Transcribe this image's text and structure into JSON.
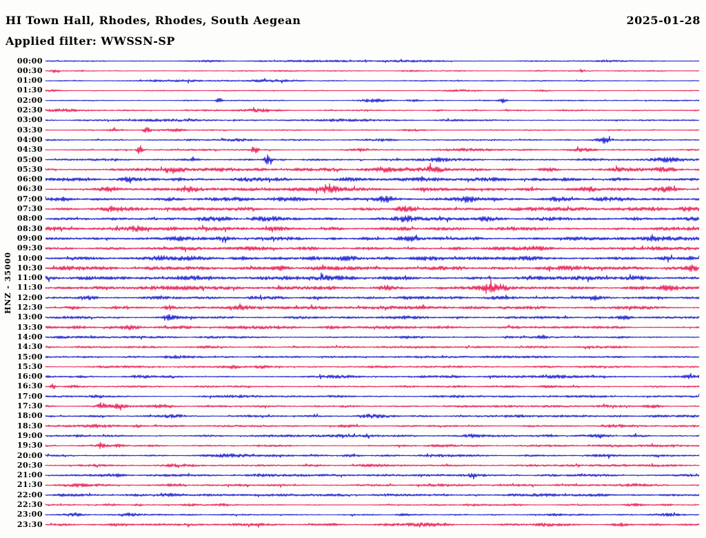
{
  "header": {
    "station_title": "HI Town Hall, Rhodes, Rhodes, South Aegean",
    "date": "2025-01-28",
    "filter_line": "Applied filter: WWSSN-SP"
  },
  "axis": {
    "channel_label": "HNZ - 35000",
    "row_interval": "30 minutes",
    "first_row": "00:00",
    "last_row": "23:30"
  },
  "colors": {
    "trace_blue": "#0d10cf",
    "trace_red": "#e8114d",
    "text": "#000000",
    "background": "#fdfdfb"
  },
  "chart_data": {
    "type": "line",
    "title": "HI Town Hall, Rhodes, Rhodes, South Aegean",
    "subtitle": "Applied filter: WWSSN-SP",
    "date": "2025-01-28",
    "channel": "HNZ",
    "amplitude_scale": 35000,
    "layout": "helicorder, 48 half-hour rows, alternating blue/red traces",
    "legend_position": "none",
    "grid": false,
    "rows": [
      {
        "time": "00:00",
        "color": "blue",
        "noise": 0.7,
        "events": [
          [
            0.42,
            1.3,
            45
          ],
          [
            0.56,
            1.3,
            25
          ],
          [
            0.25,
            0.9,
            12
          ],
          [
            0.86,
            1.0,
            20
          ]
        ]
      },
      {
        "time": "00:30",
        "color": "red",
        "noise": 0.6,
        "events": [
          [
            0.015,
            2.2,
            4
          ],
          [
            0.36,
            1.0,
            9
          ],
          [
            0.56,
            1.0,
            12
          ],
          [
            0.82,
            1.6,
            2
          ]
        ]
      },
      {
        "time": "01:00",
        "color": "blue",
        "noise": 0.7,
        "events": [
          [
            0.2,
            1.1,
            40
          ],
          [
            0.34,
            1.4,
            30
          ],
          [
            0.63,
            0.9,
            8
          ]
        ]
      },
      {
        "time": "01:30",
        "color": "red",
        "noise": 0.6,
        "events": [
          [
            0.01,
            1.4,
            8
          ],
          [
            0.63,
            1.4,
            22
          ],
          [
            0.76,
            0.9,
            8
          ]
        ]
      },
      {
        "time": "02:00",
        "color": "blue",
        "noise": 0.7,
        "events": [
          [
            0.265,
            5.5,
            2.5
          ],
          [
            0.5,
            2.2,
            14
          ],
          [
            0.565,
            2.0,
            8
          ],
          [
            0.7,
            3.5,
            4
          ]
        ]
      },
      {
        "time": "02:30",
        "color": "red",
        "noise": 0.9,
        "events": [
          [
            0.03,
            1.6,
            16
          ],
          [
            0.33,
            1.7,
            16
          ],
          [
            0.6,
            1.0,
            10
          ]
        ]
      },
      {
        "time": "03:00",
        "color": "blue",
        "noise": 0.8,
        "events": [
          [
            0.2,
            1.3,
            45
          ],
          [
            0.46,
            1.3,
            40
          ],
          [
            0.62,
            0.9,
            15
          ]
        ]
      },
      {
        "time": "03:30",
        "color": "red",
        "noise": 0.7,
        "events": [
          [
            0.105,
            2.2,
            6
          ],
          [
            0.155,
            3.2,
            5
          ],
          [
            0.2,
            2.2,
            9
          ],
          [
            0.56,
            1.3,
            12
          ]
        ]
      },
      {
        "time": "04:00",
        "color": "blue",
        "noise": 1.0,
        "events": [
          [
            0.855,
            4.0,
            6
          ],
          [
            0.5,
            1.2,
            18
          ],
          [
            0.3,
            1.0,
            18
          ]
        ]
      },
      {
        "time": "04:30",
        "color": "red",
        "noise": 1.0,
        "events": [
          [
            0.145,
            8.5,
            3
          ],
          [
            0.32,
            5.0,
            3.5
          ],
          [
            0.48,
            1.6,
            16
          ],
          [
            0.66,
            1.8,
            25
          ],
          [
            0.82,
            2.0,
            14
          ]
        ]
      },
      {
        "time": "05:00",
        "color": "blue",
        "noise": 1.3,
        "events": [
          [
            0.34,
            7.5,
            4
          ],
          [
            0.225,
            1.8,
            8
          ],
          [
            0.6,
            2.4,
            14
          ],
          [
            0.955,
            2.8,
            15
          ]
        ]
      },
      {
        "time": "05:30",
        "color": "red",
        "noise": 2.2,
        "events": [
          [
            0.2,
            2.2,
            9
          ],
          [
            0.52,
            2.8,
            12
          ],
          [
            0.59,
            2.2,
            8
          ],
          [
            0.77,
            2.2,
            9
          ],
          [
            0.95,
            1.8,
            9
          ]
        ]
      },
      {
        "time": "06:00",
        "color": "blue",
        "noise": 2.2,
        "events": [
          [
            0.12,
            2.2,
            9
          ],
          [
            0.2,
            2.2,
            7
          ],
          [
            0.46,
            1.8,
            16
          ],
          [
            0.75,
            1.4,
            16
          ]
        ]
      },
      {
        "time": "06:30",
        "color": "red",
        "noise": 2.2,
        "events": [
          [
            0.1,
            2.3,
            10
          ],
          [
            0.22,
            2.3,
            9
          ],
          [
            0.44,
            2.8,
            10
          ],
          [
            0.83,
            2.3,
            10
          ],
          [
            0.95,
            1.8,
            7
          ]
        ]
      },
      {
        "time": "07:00",
        "color": "blue",
        "noise": 2.3,
        "events": [
          [
            0.3,
            1.8,
            9
          ],
          [
            0.52,
            2.3,
            10
          ],
          [
            0.65,
            2.3,
            9
          ],
          [
            0.78,
            1.8,
            9
          ]
        ]
      },
      {
        "time": "07:30",
        "color": "red",
        "noise": 2.2,
        "events": [
          [
            0.1,
            2.3,
            9
          ],
          [
            0.55,
            1.8,
            9
          ],
          [
            0.98,
            2.3,
            7
          ]
        ]
      },
      {
        "time": "08:00",
        "color": "blue",
        "noise": 2.5,
        "events": [
          [
            0.35,
            1.8,
            10
          ],
          [
            0.55,
            2.8,
            10
          ],
          [
            0.67,
            2.3,
            9
          ],
          [
            0.9,
            1.8,
            9
          ]
        ]
      },
      {
        "time": "08:30",
        "color": "red",
        "noise": 2.2,
        "events": [
          [
            0.14,
            2.3,
            9
          ],
          [
            0.35,
            1.8,
            10
          ],
          [
            0.55,
            1.8,
            9
          ],
          [
            0.75,
            1.3,
            12
          ]
        ]
      },
      {
        "time": "09:00",
        "color": "blue",
        "noise": 2.3,
        "events": [
          [
            0.2,
            2.3,
            10
          ],
          [
            0.56,
            1.8,
            9
          ],
          [
            0.8,
            1.3,
            9
          ],
          [
            0.93,
            1.3,
            9
          ]
        ]
      },
      {
        "time": "09:30",
        "color": "red",
        "noise": 2.2,
        "events": [
          [
            0.4,
            1.8,
            10
          ],
          [
            0.75,
            1.3,
            9
          ],
          [
            0.93,
            2.3,
            9
          ]
        ]
      },
      {
        "time": "10:00",
        "color": "blue",
        "noise": 2.5,
        "events": [
          [
            0.18,
            2.3,
            10
          ],
          [
            0.45,
            1.8,
            12
          ],
          [
            0.6,
            1.8,
            9
          ],
          [
            0.95,
            2.3,
            9
          ]
        ]
      },
      {
        "time": "10:30",
        "color": "red",
        "noise": 2.2,
        "events": [
          [
            0.1,
            1.3,
            10
          ],
          [
            0.36,
            2.3,
            10
          ],
          [
            0.8,
            1.8,
            9
          ],
          [
            0.99,
            2.6,
            6
          ]
        ]
      },
      {
        "time": "11:00",
        "color": "blue",
        "noise": 2.5,
        "events": [
          [
            0.42,
            2.3,
            10
          ],
          [
            0.52,
            1.8,
            9
          ],
          [
            0.9,
            1.3,
            12
          ]
        ]
      },
      {
        "time": "11:30",
        "color": "red",
        "noise": 2.2,
        "events": [
          [
            0.69,
            4.2,
            16
          ],
          [
            0.52,
            1.8,
            9
          ],
          [
            0.95,
            2.3,
            7
          ]
        ]
      },
      {
        "time": "12:00",
        "color": "blue",
        "noise": 1.8,
        "events": [
          [
            0.07,
            2.3,
            7
          ],
          [
            0.32,
            1.3,
            9
          ],
          [
            0.55,
            1.3,
            9
          ],
          [
            0.84,
            2.3,
            7
          ]
        ]
      },
      {
        "time": "12:30",
        "color": "red",
        "noise": 1.8,
        "events": [
          [
            0.04,
            2.3,
            7
          ],
          [
            0.19,
            2.8,
            7
          ],
          [
            0.3,
            1.3,
            9
          ],
          [
            0.55,
            1.3,
            16
          ],
          [
            0.75,
            1.3,
            9
          ]
        ]
      },
      {
        "time": "13:00",
        "color": "blue",
        "noise": 1.5,
        "events": [
          [
            0.19,
            2.8,
            7
          ],
          [
            0.55,
            1.3,
            12
          ],
          [
            0.885,
            2.8,
            7
          ]
        ]
      },
      {
        "time": "13:30",
        "color": "red",
        "noise": 1.8,
        "events": [
          [
            0.05,
            1.3,
            9
          ],
          [
            0.13,
            2.3,
            9
          ],
          [
            0.3,
            1.3,
            9
          ],
          [
            0.55,
            1.1,
            16
          ]
        ]
      },
      {
        "time": "14:00",
        "color": "blue",
        "noise": 1.2,
        "events": [
          [
            0.025,
            1.3,
            6
          ],
          [
            0.25,
            1.1,
            12
          ],
          [
            0.76,
            2.8,
            4
          ],
          [
            0.55,
            0.9,
            16
          ]
        ]
      },
      {
        "time": "14:30",
        "color": "red",
        "noise": 1.2,
        "events": [
          [
            0.25,
            1.0,
            16
          ],
          [
            0.6,
            0.9,
            16
          ]
        ]
      },
      {
        "time": "15:00",
        "color": "blue",
        "noise": 1.2,
        "events": [
          [
            0.2,
            1.0,
            16
          ],
          [
            0.75,
            0.9,
            16
          ]
        ]
      },
      {
        "time": "15:30",
        "color": "red",
        "noise": 1.2,
        "events": [
          [
            0.285,
            1.7,
            8
          ],
          [
            0.33,
            1.7,
            6
          ],
          [
            0.5,
            1.0,
            9
          ]
        ]
      },
      {
        "time": "16:00",
        "color": "blue",
        "noise": 1.3,
        "events": [
          [
            0.15,
            1.3,
            12
          ],
          [
            0.45,
            1.3,
            16
          ],
          [
            0.78,
            1.6,
            12
          ],
          [
            0.985,
            2.3,
            6
          ]
        ]
      },
      {
        "time": "16:30",
        "color": "red",
        "noise": 1.2,
        "events": [
          [
            0.012,
            3.8,
            2.5
          ],
          [
            0.04,
            1.6,
            9
          ],
          [
            0.77,
            1.3,
            9
          ]
        ]
      },
      {
        "time": "17:00",
        "color": "blue",
        "noise": 1.3,
        "events": [
          [
            0.08,
            1.3,
            9
          ],
          [
            0.3,
            1.1,
            16
          ],
          [
            0.45,
            1.1,
            16
          ]
        ]
      },
      {
        "time": "17:30",
        "color": "red",
        "noise": 1.2,
        "events": [
          [
            0.085,
            6.0,
            3
          ],
          [
            0.11,
            2.3,
            12
          ],
          [
            0.18,
            1.6,
            9
          ],
          [
            0.85,
            1.1,
            9
          ],
          [
            0.93,
            1.3,
            9
          ]
        ]
      },
      {
        "time": "18:00",
        "color": "blue",
        "noise": 1.4,
        "events": [
          [
            0.2,
            1.3,
            16
          ],
          [
            0.5,
            1.3,
            16
          ],
          [
            0.73,
            1.6,
            12
          ]
        ]
      },
      {
        "time": "18:30",
        "color": "red",
        "noise": 1.2,
        "events": [
          [
            0.08,
            1.8,
            10
          ],
          [
            0.14,
            2.3,
            5
          ],
          [
            0.45,
            1.1,
            16
          ],
          [
            0.87,
            1.3,
            9
          ]
        ]
      },
      {
        "time": "19:00",
        "color": "blue",
        "noise": 1.4,
        "events": [
          [
            0.05,
            1.3,
            9
          ],
          [
            0.25,
            1.1,
            16
          ],
          [
            0.45,
            1.3,
            12
          ],
          [
            0.65,
            1.1,
            9
          ],
          [
            0.85,
            1.1,
            12
          ]
        ]
      },
      {
        "time": "19:30",
        "color": "red",
        "noise": 1.2,
        "events": [
          [
            0.085,
            4.0,
            4
          ],
          [
            0.11,
            1.8,
            9
          ],
          [
            0.6,
            0.9,
            16
          ],
          [
            0.93,
            1.1,
            12
          ]
        ]
      },
      {
        "time": "20:00",
        "color": "blue",
        "noise": 1.4,
        "events": [
          [
            0.3,
            1.1,
            22
          ],
          [
            0.6,
            1.1,
            16
          ],
          [
            0.85,
            1.1,
            16
          ]
        ]
      },
      {
        "time": "20:30",
        "color": "red",
        "noise": 1.3,
        "events": [
          [
            0.2,
            1.1,
            16
          ],
          [
            0.5,
            1.1,
            16
          ],
          [
            0.75,
            1.1,
            16
          ]
        ]
      },
      {
        "time": "21:00",
        "color": "blue",
        "noise": 1.4,
        "events": [
          [
            0.1,
            1.3,
            16
          ],
          [
            0.35,
            1.3,
            16
          ],
          [
            0.65,
            1.6,
            16
          ],
          [
            0.85,
            1.3,
            16
          ]
        ]
      },
      {
        "time": "21:30",
        "color": "red",
        "noise": 1.3,
        "events": [
          [
            0.05,
            1.4,
            9
          ],
          [
            0.2,
            1.4,
            12
          ],
          [
            0.6,
            1.1,
            16
          ],
          [
            0.9,
            1.4,
            12
          ]
        ]
      },
      {
        "time": "22:00",
        "color": "blue",
        "noise": 1.5,
        "events": [
          [
            0.2,
            1.1,
            16
          ],
          [
            0.45,
            1.1,
            16
          ],
          [
            0.75,
            1.1,
            16
          ]
        ]
      },
      {
        "time": "22:30",
        "color": "red",
        "noise": 0.8,
        "events": [
          [
            0.1,
            1.7,
            7
          ],
          [
            0.14,
            1.7,
            5
          ],
          [
            0.22,
            1.7,
            9
          ],
          [
            0.27,
            1.4,
            7
          ],
          [
            0.65,
            1.4,
            9
          ],
          [
            0.72,
            1.1,
            9
          ],
          [
            0.9,
            1.8,
            12
          ],
          [
            0.95,
            1.4,
            9
          ]
        ]
      },
      {
        "time": "23:00",
        "color": "blue",
        "noise": 0.9,
        "events": [
          [
            0.045,
            1.7,
            9
          ],
          [
            0.13,
            1.9,
            10
          ],
          [
            0.55,
            1.4,
            9
          ],
          [
            0.78,
            1.4,
            9
          ],
          [
            0.95,
            1.4,
            12
          ]
        ]
      },
      {
        "time": "23:30",
        "color": "red",
        "noise": 1.5,
        "events": [
          [
            0.3,
            1.1,
            16
          ],
          [
            0.56,
            1.4,
            25
          ],
          [
            0.76,
            1.7,
            9
          ],
          [
            0.88,
            1.4,
            9
          ]
        ]
      }
    ]
  }
}
